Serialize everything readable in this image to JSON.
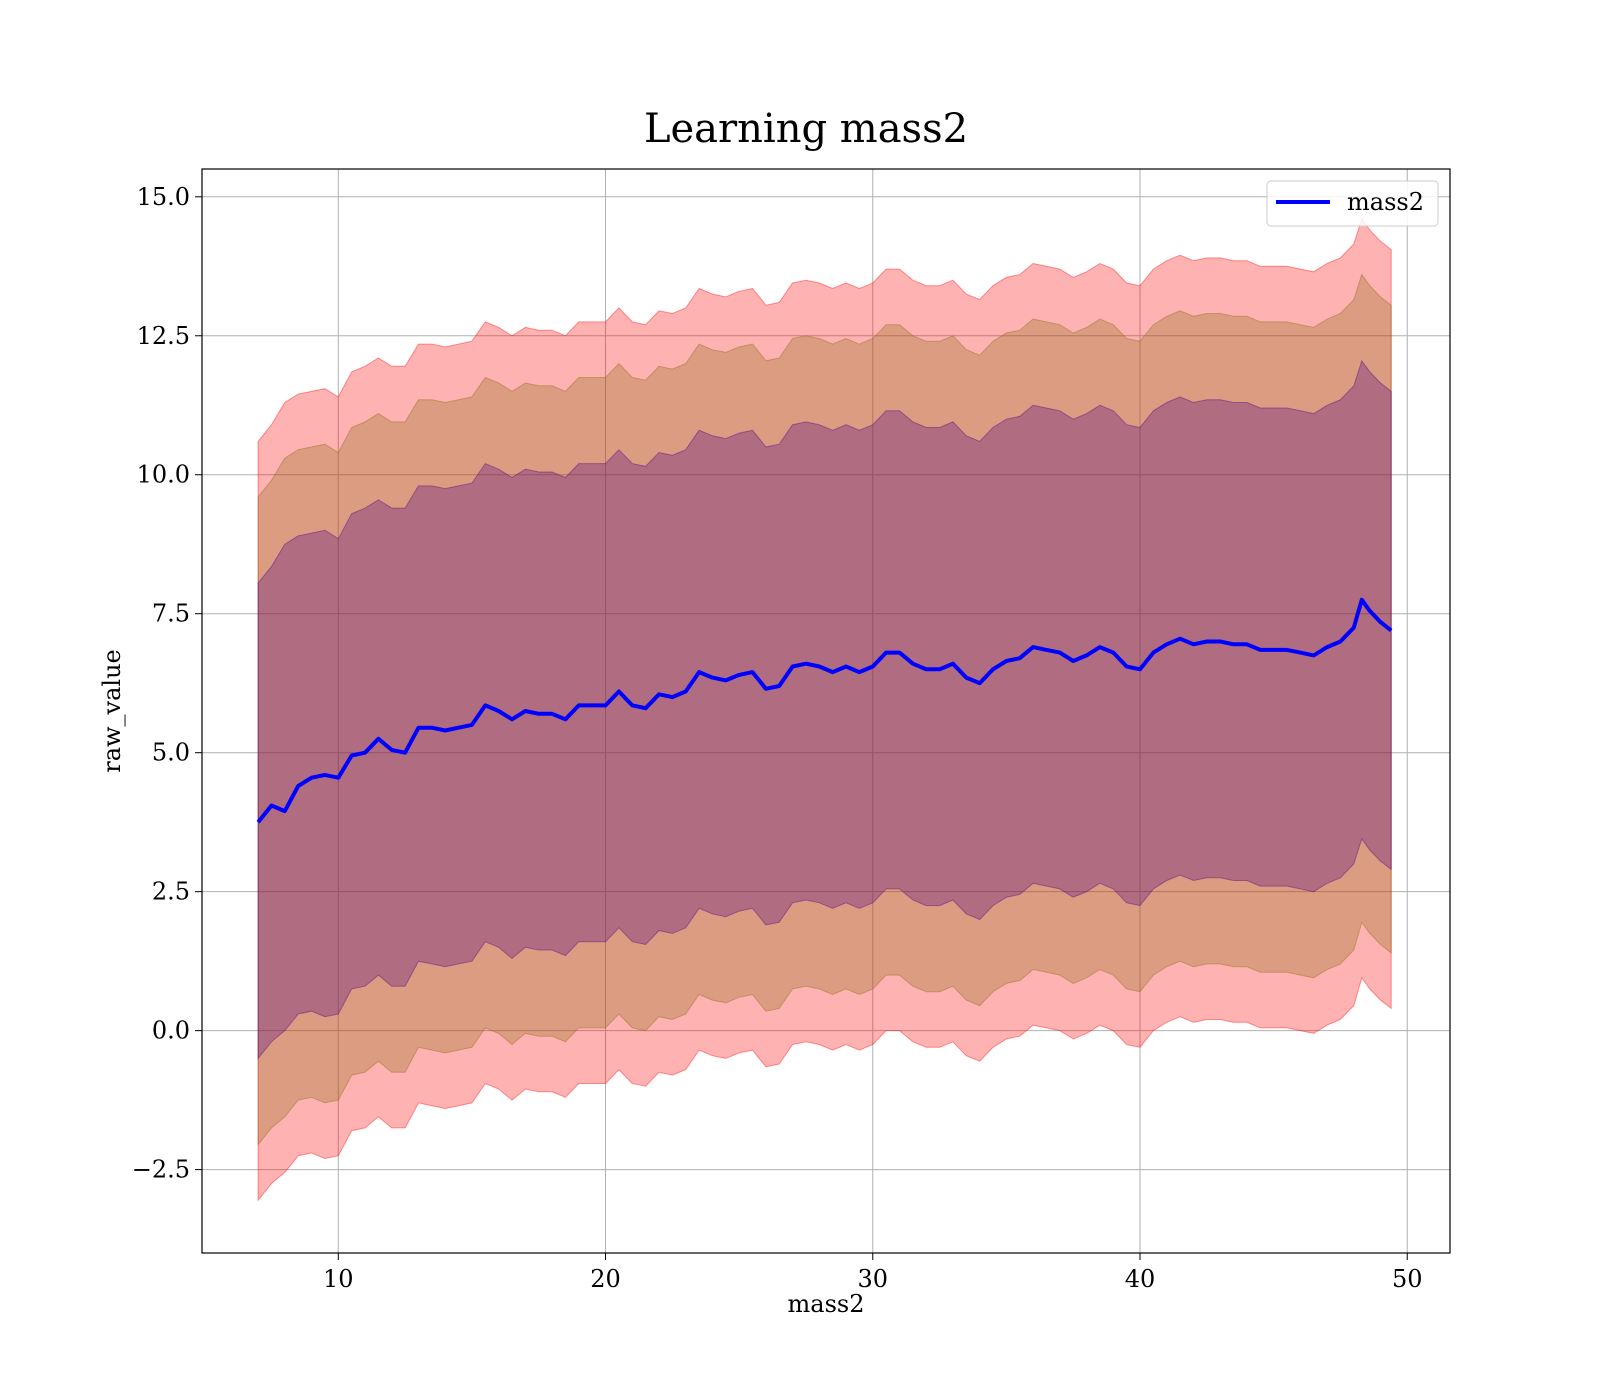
{
  "chart_data": {
    "type": "area",
    "title": "Learning mass2",
    "xlabel": "mass2",
    "ylabel": "raw_value",
    "xlim": [
      4.9,
      51.6
    ],
    "ylim": [
      -4.0,
      15.5
    ],
    "xticks": [
      10,
      20,
      30,
      40,
      50
    ],
    "xtick_labels": [
      "10",
      "20",
      "30",
      "40",
      "50"
    ],
    "yticks": [
      -2.5,
      0.0,
      2.5,
      5.0,
      7.5,
      10.0,
      12.5,
      15.0
    ],
    "ytick_labels": [
      "−2.5",
      "0.0",
      "2.5",
      "5.0",
      "7.5",
      "10.0",
      "12.5",
      "15.0"
    ],
    "grid": true,
    "legend_position": "top-right",
    "series": [
      {
        "name": "mass2",
        "color": "#0000ff",
        "x": [
          7.0,
          7.5,
          8.0,
          8.5,
          9.0,
          9.5,
          10.0,
          10.5,
          11.0,
          11.5,
          12.0,
          12.5,
          13.0,
          13.5,
          14.0,
          14.5,
          15.0,
          15.5,
          16.0,
          16.5,
          17.0,
          17.5,
          18.0,
          18.5,
          19.0,
          19.5,
          20.0,
          20.5,
          21.0,
          21.5,
          22.0,
          22.5,
          23.0,
          23.5,
          24.0,
          24.5,
          25.0,
          25.5,
          26.0,
          26.5,
          27.0,
          27.5,
          28.0,
          28.5,
          29.0,
          29.5,
          30.0,
          30.5,
          31.0,
          31.5,
          32.0,
          32.5,
          33.0,
          33.5,
          34.0,
          34.5,
          35.0,
          35.5,
          36.0,
          36.5,
          37.0,
          37.5,
          38.0,
          38.5,
          39.0,
          39.5,
          40.0,
          40.5,
          41.0,
          41.5,
          42.0,
          42.5,
          43.0,
          43.5,
          44.0,
          44.5,
          45.0,
          45.5,
          46.0,
          46.5,
          47.0,
          47.5,
          48.0,
          48.3,
          48.6,
          49.0,
          49.4
        ],
        "y": [
          3.75,
          4.05,
          3.95,
          4.4,
          4.55,
          4.6,
          4.55,
          4.95,
          5.0,
          5.25,
          5.05,
          5.0,
          5.45,
          5.45,
          5.4,
          5.45,
          5.5,
          5.85,
          5.75,
          5.6,
          5.75,
          5.7,
          5.7,
          5.6,
          5.85,
          5.85,
          5.85,
          6.1,
          5.85,
          5.8,
          6.05,
          6.0,
          6.1,
          6.45,
          6.35,
          6.3,
          6.4,
          6.45,
          6.15,
          6.2,
          6.55,
          6.6,
          6.55,
          6.45,
          6.55,
          6.45,
          6.55,
          6.8,
          6.8,
          6.6,
          6.5,
          6.5,
          6.6,
          6.35,
          6.25,
          6.5,
          6.65,
          6.7,
          6.9,
          6.85,
          6.8,
          6.65,
          6.75,
          6.9,
          6.8,
          6.55,
          6.5,
          6.8,
          6.95,
          7.05,
          6.95,
          7.0,
          7.0,
          6.95,
          6.95,
          6.85,
          6.85,
          6.85,
          6.8,
          6.75,
          6.9,
          7.0,
          7.25,
          7.75,
          7.55,
          7.35,
          7.2
        ]
      }
    ],
    "bands": [
      {
        "color": "#ff0000",
        "opacity": 0.3,
        "lower": [
          -3.05,
          -2.75,
          -2.55,
          -2.25,
          -2.2,
          -2.3,
          -2.25,
          -1.8,
          -1.75,
          -1.55,
          -1.75,
          -1.75,
          -1.3,
          -1.35,
          -1.4,
          -1.35,
          -1.3,
          -0.95,
          -1.05,
          -1.25,
          -1.05,
          -1.1,
          -1.1,
          -1.2,
          -0.95,
          -0.95,
          -0.95,
          -0.7,
          -0.95,
          -1.0,
          -0.75,
          -0.8,
          -0.7,
          -0.35,
          -0.45,
          -0.5,
          -0.4,
          -0.35,
          -0.65,
          -0.6,
          -0.25,
          -0.2,
          -0.25,
          -0.35,
          -0.25,
          -0.35,
          -0.25,
          0.0,
          0.0,
          -0.2,
          -0.3,
          -0.3,
          -0.2,
          -0.45,
          -0.55,
          -0.3,
          -0.15,
          -0.1,
          0.1,
          0.05,
          0.0,
          -0.15,
          -0.05,
          0.1,
          0.0,
          -0.25,
          -0.3,
          0.0,
          0.15,
          0.25,
          0.15,
          0.2,
          0.2,
          0.15,
          0.15,
          0.05,
          0.05,
          0.05,
          0.0,
          -0.05,
          0.1,
          0.2,
          0.45,
          0.95,
          0.75,
          0.55,
          0.4
        ],
        "upper": [
          10.6,
          10.9,
          11.3,
          11.45,
          11.5,
          11.55,
          11.4,
          11.85,
          11.95,
          12.1,
          11.95,
          11.95,
          12.35,
          12.35,
          12.3,
          12.35,
          12.4,
          12.75,
          12.65,
          12.5,
          12.65,
          12.6,
          12.6,
          12.5,
          12.75,
          12.75,
          12.75,
          13.0,
          12.75,
          12.7,
          12.95,
          12.9,
          13.0,
          13.35,
          13.25,
          13.2,
          13.3,
          13.35,
          13.05,
          13.1,
          13.45,
          13.5,
          13.45,
          13.35,
          13.45,
          13.35,
          13.45,
          13.7,
          13.7,
          13.5,
          13.4,
          13.4,
          13.5,
          13.25,
          13.15,
          13.4,
          13.55,
          13.6,
          13.8,
          13.75,
          13.7,
          13.55,
          13.65,
          13.8,
          13.7,
          13.45,
          13.4,
          13.7,
          13.85,
          13.95,
          13.85,
          13.9,
          13.9,
          13.85,
          13.85,
          13.75,
          13.75,
          13.75,
          13.7,
          13.65,
          13.8,
          13.9,
          14.15,
          14.6,
          14.4,
          14.2,
          14.05
        ]
      },
      {
        "color": "#8b6914",
        "opacity": 0.3,
        "lower": [
          -2.05,
          -1.75,
          -1.55,
          -1.25,
          -1.2,
          -1.3,
          -1.25,
          -0.8,
          -0.75,
          -0.55,
          -0.75,
          -0.75,
          -0.3,
          -0.35,
          -0.4,
          -0.35,
          -0.3,
          0.05,
          -0.05,
          -0.25,
          -0.05,
          -0.1,
          -0.1,
          -0.2,
          0.05,
          0.05,
          0.05,
          0.3,
          0.05,
          0.0,
          0.25,
          0.2,
          0.3,
          0.65,
          0.55,
          0.5,
          0.6,
          0.65,
          0.35,
          0.4,
          0.75,
          0.8,
          0.75,
          0.65,
          0.75,
          0.65,
          0.75,
          1.0,
          1.0,
          0.8,
          0.7,
          0.7,
          0.8,
          0.55,
          0.45,
          0.7,
          0.85,
          0.9,
          1.1,
          1.05,
          1.0,
          0.85,
          0.95,
          1.1,
          1.0,
          0.75,
          0.7,
          1.0,
          1.15,
          1.25,
          1.15,
          1.2,
          1.2,
          1.15,
          1.15,
          1.05,
          1.05,
          1.05,
          1.0,
          0.95,
          1.1,
          1.2,
          1.45,
          1.95,
          1.75,
          1.55,
          1.4
        ],
        "upper": [
          9.6,
          9.9,
          10.3,
          10.45,
          10.5,
          10.55,
          10.4,
          10.85,
          10.95,
          11.1,
          10.95,
          10.95,
          11.35,
          11.35,
          11.3,
          11.35,
          11.4,
          11.75,
          11.65,
          11.5,
          11.65,
          11.6,
          11.6,
          11.5,
          11.75,
          11.75,
          11.75,
          12.0,
          11.75,
          11.7,
          11.95,
          11.9,
          12.0,
          12.35,
          12.25,
          12.2,
          12.3,
          12.35,
          12.05,
          12.1,
          12.45,
          12.5,
          12.45,
          12.35,
          12.45,
          12.35,
          12.45,
          12.7,
          12.7,
          12.5,
          12.4,
          12.4,
          12.5,
          12.25,
          12.15,
          12.4,
          12.55,
          12.6,
          12.8,
          12.75,
          12.7,
          12.55,
          12.65,
          12.8,
          12.7,
          12.45,
          12.4,
          12.7,
          12.85,
          12.95,
          12.85,
          12.9,
          12.9,
          12.85,
          12.85,
          12.75,
          12.75,
          12.75,
          12.7,
          12.65,
          12.8,
          12.9,
          13.15,
          13.6,
          13.4,
          13.2,
          13.05
        ]
      },
      {
        "color": "#4b0082",
        "opacity": 0.3,
        "lower": [
          -0.5,
          -0.2,
          0.0,
          0.3,
          0.35,
          0.25,
          0.3,
          0.75,
          0.8,
          1.0,
          0.8,
          0.8,
          1.25,
          1.2,
          1.15,
          1.2,
          1.25,
          1.6,
          1.5,
          1.3,
          1.5,
          1.45,
          1.45,
          1.35,
          1.6,
          1.6,
          1.6,
          1.85,
          1.6,
          1.55,
          1.8,
          1.75,
          1.85,
          2.2,
          2.1,
          2.05,
          2.15,
          2.2,
          1.9,
          1.95,
          2.3,
          2.35,
          2.3,
          2.2,
          2.3,
          2.2,
          2.3,
          2.55,
          2.55,
          2.35,
          2.25,
          2.25,
          2.35,
          2.1,
          2.0,
          2.25,
          2.4,
          2.45,
          2.65,
          2.6,
          2.55,
          2.4,
          2.5,
          2.65,
          2.55,
          2.3,
          2.25,
          2.55,
          2.7,
          2.8,
          2.7,
          2.75,
          2.75,
          2.7,
          2.7,
          2.6,
          2.6,
          2.6,
          2.55,
          2.5,
          2.65,
          2.75,
          3.0,
          3.45,
          3.25,
          3.05,
          2.9
        ],
        "upper": [
          8.05,
          8.35,
          8.75,
          8.9,
          8.95,
          9.0,
          8.85,
          9.3,
          9.4,
          9.55,
          9.4,
          9.4,
          9.8,
          9.8,
          9.75,
          9.8,
          9.85,
          10.2,
          10.1,
          9.95,
          10.1,
          10.05,
          10.05,
          9.95,
          10.2,
          10.2,
          10.2,
          10.45,
          10.2,
          10.15,
          10.4,
          10.35,
          10.45,
          10.8,
          10.7,
          10.65,
          10.75,
          10.8,
          10.5,
          10.55,
          10.9,
          10.95,
          10.9,
          10.8,
          10.9,
          10.8,
          10.9,
          11.15,
          11.15,
          10.95,
          10.85,
          10.85,
          10.95,
          10.7,
          10.6,
          10.85,
          11.0,
          11.05,
          11.25,
          11.2,
          11.15,
          11.0,
          11.1,
          11.25,
          11.15,
          10.9,
          10.85,
          11.15,
          11.3,
          11.4,
          11.3,
          11.35,
          11.35,
          11.3,
          11.3,
          11.2,
          11.2,
          11.2,
          11.15,
          11.1,
          11.25,
          11.35,
          11.6,
          12.05,
          11.85,
          11.65,
          11.5
        ]
      }
    ]
  }
}
